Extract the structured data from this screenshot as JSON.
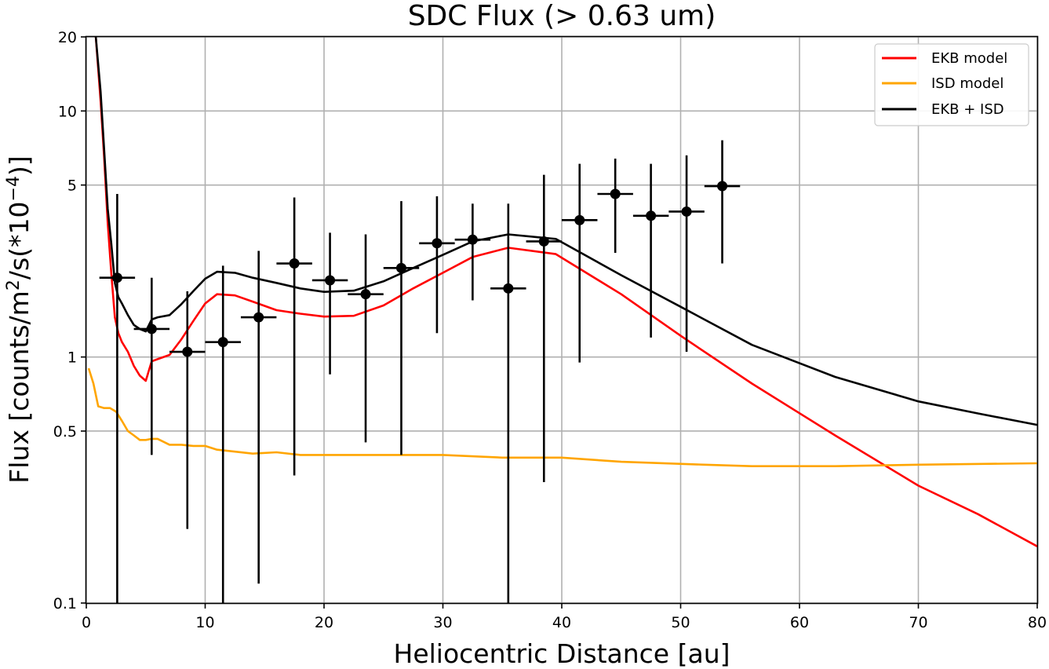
{
  "chart_data": {
    "type": "line",
    "title": "SDC Flux (> 0.63 um)",
    "xlabel": "Heliocentric Distance [au]",
    "ylabel_prefix": "Flux [counts/m",
    "ylabel_sup1": "2",
    "ylabel_mid": "/s(*10",
    "ylabel_sup2": "−4",
    "ylabel_suffix": ")]",
    "xlim": [
      0,
      80
    ],
    "ylim": [
      0.1,
      20
    ],
    "yscale": "log",
    "grid": true,
    "legend_position": "top-right",
    "x_ticks": [
      {
        "value": 0,
        "label": "0"
      },
      {
        "value": 10,
        "label": "10"
      },
      {
        "value": 20,
        "label": "20"
      },
      {
        "value": 30,
        "label": "30"
      },
      {
        "value": 40,
        "label": "40"
      },
      {
        "value": 50,
        "label": "50"
      },
      {
        "value": 60,
        "label": "60"
      },
      {
        "value": 70,
        "label": "70"
      },
      {
        "value": 80,
        "label": "80"
      }
    ],
    "y_ticks": [
      {
        "value": 0.1,
        "label": "0.1"
      },
      {
        "value": 0.5,
        "label": "0.5"
      },
      {
        "value": 1,
        "label": "1"
      },
      {
        "value": 5,
        "label": "5"
      },
      {
        "value": 10,
        "label": "10"
      },
      {
        "value": 20,
        "label": "20"
      }
    ],
    "series": [
      {
        "name": "EKB model",
        "color": "#ff0000",
        "x": [
          0.8,
          1.2,
          1.5,
          1.8,
          2.1,
          2.4,
          2.7,
          3.0,
          3.5,
          4.0,
          4.5,
          5.0,
          5.5,
          6.0,
          7.0,
          8.0,
          9.0,
          10.0,
          11.0,
          12.5,
          14.0,
          16.0,
          18.0,
          20.0,
          22.5,
          25.0,
          27.5,
          30.0,
          32.5,
          35.5,
          39.5,
          45.0,
          50.0,
          56.0,
          63.0,
          70.0,
          75.0,
          80.0
        ],
        "values": [
          20,
          11,
          6.5,
          3.5,
          2.2,
          1.45,
          1.25,
          1.15,
          1.05,
          0.92,
          0.84,
          0.8,
          0.96,
          0.98,
          1.02,
          1.18,
          1.4,
          1.65,
          1.8,
          1.78,
          1.68,
          1.55,
          1.5,
          1.46,
          1.47,
          1.62,
          1.9,
          2.2,
          2.55,
          2.78,
          2.62,
          1.8,
          1.22,
          0.78,
          0.48,
          0.3,
          0.23,
          0.17
        ]
      },
      {
        "name": "ISD model",
        "color": "#ffa500",
        "x": [
          0.2,
          0.6,
          1.0,
          1.5,
          2.0,
          2.5,
          3.0,
          3.5,
          4.0,
          4.5,
          5.0,
          5.5,
          6.0,
          7.0,
          8.0,
          9.0,
          10.0,
          11.0,
          12.0,
          14.0,
          16.0,
          18.0,
          22.0,
          26.0,
          30.0,
          35.0,
          40.0,
          45.0,
          52.0,
          56.0,
          63.0,
          70.0,
          80.0
        ],
        "values": [
          0.9,
          0.78,
          0.63,
          0.62,
          0.62,
          0.6,
          0.55,
          0.5,
          0.48,
          0.46,
          0.46,
          0.465,
          0.465,
          0.44,
          0.44,
          0.435,
          0.435,
          0.42,
          0.415,
          0.405,
          0.41,
          0.4,
          0.4,
          0.4,
          0.4,
          0.39,
          0.39,
          0.375,
          0.365,
          0.36,
          0.36,
          0.365,
          0.37
        ]
      },
      {
        "name": "EKB + ISD",
        "color": "#000000",
        "x": [
          0.8,
          1.2,
          1.5,
          1.8,
          2.1,
          2.4,
          2.7,
          3.0,
          3.5,
          4.0,
          4.5,
          5.0,
          5.5,
          6.0,
          7.0,
          8.0,
          9.0,
          10.0,
          11.0,
          12.5,
          14.0,
          16.0,
          18.0,
          20.0,
          22.5,
          25.0,
          27.5,
          30.0,
          32.5,
          35.5,
          39.5,
          45.0,
          50.0,
          56.0,
          63.0,
          70.0,
          75.0,
          80.0
        ],
        "values": [
          20,
          12,
          7,
          4,
          2.9,
          2.0,
          1.75,
          1.65,
          1.48,
          1.35,
          1.3,
          1.27,
          1.42,
          1.45,
          1.48,
          1.64,
          1.85,
          2.08,
          2.22,
          2.2,
          2.1,
          2.0,
          1.9,
          1.84,
          1.86,
          2.03,
          2.3,
          2.6,
          2.95,
          3.15,
          3.02,
          2.15,
          1.6,
          1.12,
          0.83,
          0.66,
          0.59,
          0.53
        ]
      }
    ],
    "data_points": [
      {
        "x": 2.6,
        "y": 2.1,
        "xerr": 1.5,
        "ylo": 0.1,
        "yhi": 4.6
      },
      {
        "x": 5.5,
        "y": 1.3,
        "xerr": 1.5,
        "ylo": 0.4,
        "yhi": 2.1
      },
      {
        "x": 8.5,
        "y": 1.05,
        "xerr": 1.5,
        "ylo": 0.2,
        "yhi": 1.85
      },
      {
        "x": 11.5,
        "y": 1.15,
        "xerr": 1.5,
        "ylo": 0.1,
        "yhi": 2.35
      },
      {
        "x": 14.5,
        "y": 1.45,
        "xerr": 1.5,
        "ylo": 0.12,
        "yhi": 2.7
      },
      {
        "x": 17.5,
        "y": 2.4,
        "xerr": 1.5,
        "ylo": 0.33,
        "yhi": 4.45
      },
      {
        "x": 20.5,
        "y": 2.05,
        "xerr": 1.5,
        "ylo": 0.85,
        "yhi": 3.2
      },
      {
        "x": 23.5,
        "y": 1.8,
        "xerr": 1.5,
        "ylo": 0.45,
        "yhi": 3.15
      },
      {
        "x": 26.5,
        "y": 2.3,
        "xerr": 1.5,
        "ylo": 0.4,
        "yhi": 4.3
      },
      {
        "x": 29.5,
        "y": 2.9,
        "xerr": 1.5,
        "ylo": 1.25,
        "yhi": 4.5
      },
      {
        "x": 32.5,
        "y": 3.0,
        "xerr": 1.5,
        "ylo": 1.7,
        "yhi": 4.2
      },
      {
        "x": 35.5,
        "y": 1.9,
        "xerr": 1.5,
        "ylo": 0.1,
        "yhi": 4.2
      },
      {
        "x": 38.5,
        "y": 2.95,
        "xerr": 1.5,
        "ylo": 0.31,
        "yhi": 5.5
      },
      {
        "x": 41.5,
        "y": 3.6,
        "xerr": 1.5,
        "ylo": 0.95,
        "yhi": 6.1
      },
      {
        "x": 44.5,
        "y": 4.6,
        "xerr": 1.5,
        "ylo": 2.65,
        "yhi": 6.4
      },
      {
        "x": 47.5,
        "y": 3.75,
        "xerr": 1.5,
        "ylo": 1.2,
        "yhi": 6.1
      },
      {
        "x": 50.5,
        "y": 3.9,
        "xerr": 1.5,
        "ylo": 1.05,
        "yhi": 6.6
      },
      {
        "x": 53.5,
        "y": 4.95,
        "xerr": 1.5,
        "ylo": 2.4,
        "yhi": 7.6
      }
    ]
  }
}
